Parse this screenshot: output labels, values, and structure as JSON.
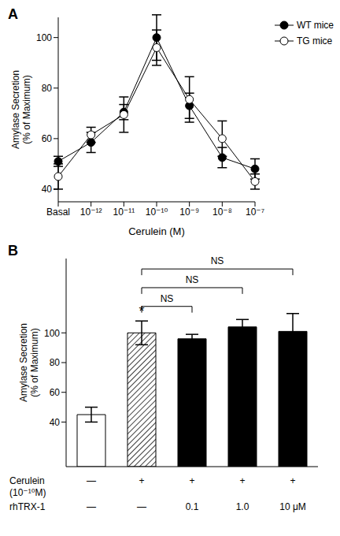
{
  "chart_data": [
    {
      "panel": "A",
      "type": "line",
      "xlabel": "Cerulein (M)",
      "ylabel": "Amylase Secretion (% of Maximum)",
      "categories": [
        "Basal",
        "10⁻¹²",
        "10⁻¹¹",
        "10⁻¹⁰",
        "10⁻⁹",
        "10⁻⁸",
        "10⁻⁷"
      ],
      "ylim": [
        35,
        108
      ],
      "yticks": [
        40,
        60,
        80,
        100
      ],
      "legend": "upper right",
      "series": [
        {
          "name": "WT mice",
          "color": "#000000",
          "marker": "circle",
          "values": [
            51,
            58.5,
            70.5,
            100,
            73,
            52.5,
            48
          ],
          "errors": [
            2,
            4,
            3,
            9,
            5,
            4,
            4
          ]
        },
        {
          "name": "TG mice",
          "color": "#000000",
          "marker": "open circle",
          "values": [
            45,
            61.5,
            69.5,
            96,
            75.5,
            60,
            43
          ],
          "errors": [
            5,
            3,
            7,
            7,
            9,
            7,
            3
          ]
        }
      ]
    },
    {
      "panel": "B",
      "type": "bar",
      "ylabel": "Amylase Secretion (% of Maximum)",
      "ylim": [
        10,
        150
      ],
      "yticks": [
        40,
        60,
        80,
        100
      ],
      "values": [
        45,
        100,
        96,
        104,
        101
      ],
      "errors": [
        5,
        8,
        3,
        5,
        12
      ],
      "colors": [
        "#ffffff",
        "#d9d9d9",
        "#000000",
        "#000000",
        "#000000"
      ],
      "x_table": [
        {
          "label": "Cerulein (10⁻¹⁰M)",
          "cells": [
            "—",
            "+",
            "+",
            "+",
            "+"
          ]
        },
        {
          "label": "rhTRX-1",
          "cells": [
            "—",
            "—",
            "0.1",
            "1.0",
            "10 μM"
          ]
        }
      ],
      "annotations": [
        {
          "index": 1,
          "label": "*"
        }
      ],
      "comparisons": [
        {
          "from": 1,
          "to": 2,
          "label": "NS"
        },
        {
          "from": 1,
          "to": 3,
          "label": "NS"
        },
        {
          "from": 1,
          "to": 4,
          "label": "NS"
        }
      ]
    }
  ]
}
